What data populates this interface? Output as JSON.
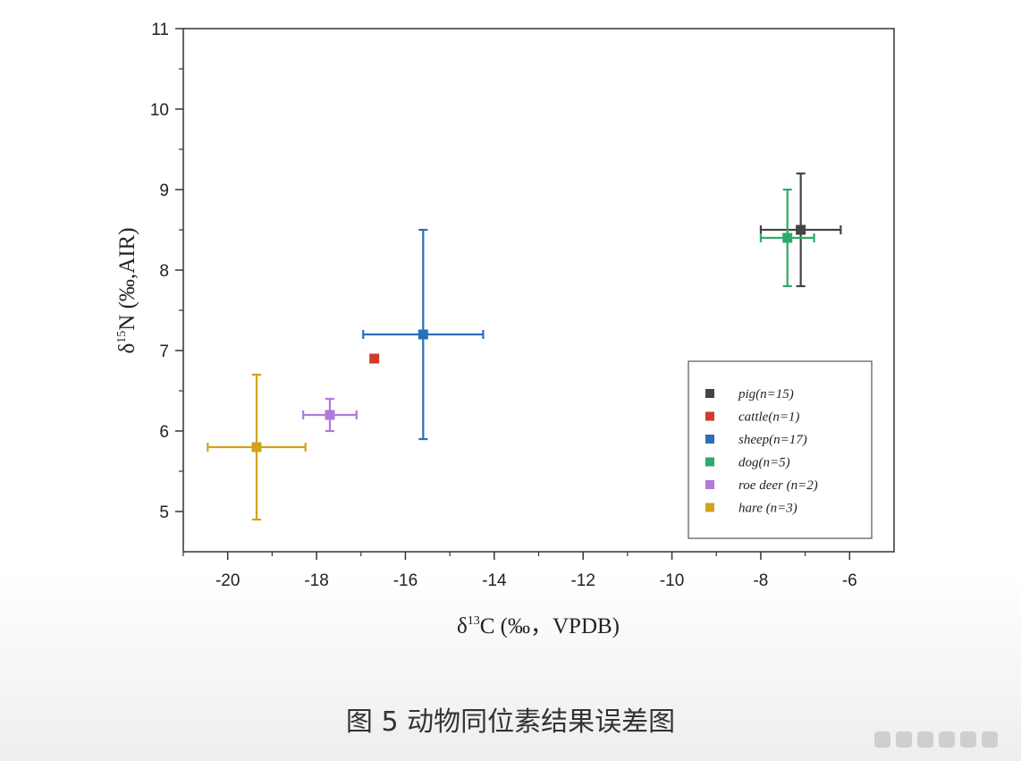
{
  "chart_data": {
    "type": "scatter",
    "xlabel_symbol": "δ",
    "xlabel_sup": "13",
    "xlabel_rest": "C (‰，VPDB)",
    "ylabel_symbol": "δ",
    "ylabel_sup": "15",
    "ylabel_rest": "N (‰,AIR)",
    "xlim": [
      -21,
      -5
    ],
    "ylim": [
      4.5,
      11
    ],
    "xticks": [
      -20,
      -18,
      -16,
      -14,
      -12,
      -10,
      -8,
      -6
    ],
    "yticks": [
      5,
      6,
      7,
      8,
      9,
      10,
      11
    ],
    "grid": false,
    "legend_position": "bottom-right",
    "series": [
      {
        "name": "pig(n=15)",
        "color": "#444444",
        "x": -7.1,
        "y": 8.5,
        "xerr": 0.9,
        "yerr": 0.7
      },
      {
        "name": "cattle(n=1)",
        "color": "#d23a2e",
        "x": -16.7,
        "y": 6.9,
        "xerr": 0,
        "yerr": 0
      },
      {
        "name": "sheep(n=17)",
        "color": "#2a6fb8",
        "x": -15.6,
        "y": 7.2,
        "xerr": 1.35,
        "yerr": 1.3
      },
      {
        "name": "dog(n=5)",
        "color": "#2cab6a",
        "x": -7.4,
        "y": 8.4,
        "xerr": 0.6,
        "yerr": 0.6
      },
      {
        "name": "roe deer (n=2)",
        "color": "#b07ad8",
        "x": -17.7,
        "y": 6.2,
        "xerr": 0.6,
        "yerr": 0.2
      },
      {
        "name": "hare (n=3)",
        "color": "#d1a21b",
        "x": -19.35,
        "y": 5.8,
        "xerr": 1.1,
        "yerr": 0.9
      }
    ]
  },
  "caption": "图 5 动物同位素结果误差图"
}
